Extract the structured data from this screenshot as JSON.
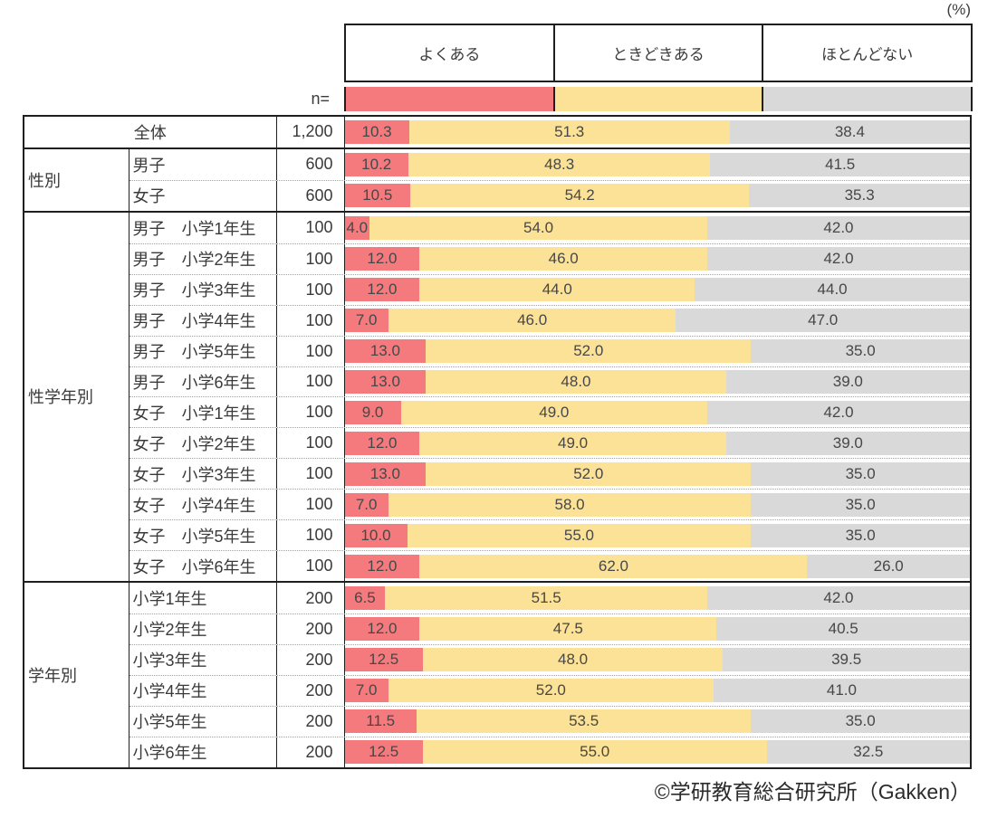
{
  "header": {
    "unit_label": "(%)",
    "n_label": "n="
  },
  "legend": {
    "position": "top",
    "items": [
      {
        "key": "often",
        "label": "よくある",
        "color": "#F47A7D"
      },
      {
        "key": "sometimes",
        "label": "ときどきある",
        "color": "#FCE296"
      },
      {
        "key": "rarely",
        "label": "ほとんどない",
        "color": "#D9D9D9"
      }
    ]
  },
  "footer": {
    "credit": "©学研教育総合研究所（Gakken）"
  },
  "chart_data": {
    "type": "bar",
    "stacked": true,
    "orientation": "horizontal",
    "unit": "%",
    "xlim": [
      0,
      100
    ],
    "grid": false,
    "legend_position": "top",
    "series_labels": [
      "よくある",
      "ときどきある",
      "ほとんどない"
    ],
    "series_colors": [
      "#F47A7D",
      "#FCE296",
      "#D9D9D9"
    ],
    "groups": [
      {
        "group": "",
        "merged": true,
        "rows": [
          {
            "label": "全体",
            "n": "1,200",
            "values": [
              10.3,
              51.3,
              38.4
            ]
          }
        ]
      },
      {
        "group": "性別",
        "merged": false,
        "rows": [
          {
            "label": "男子",
            "n": "600",
            "values": [
              10.2,
              48.3,
              41.5
            ]
          },
          {
            "label": "女子",
            "n": "600",
            "values": [
              10.5,
              54.2,
              35.3
            ]
          }
        ]
      },
      {
        "group": "性学年別",
        "merged": false,
        "rows": [
          {
            "label": "男子　小学1年生",
            "n": "100",
            "values": [
              4.0,
              54.0,
              42.0
            ]
          },
          {
            "label": "男子　小学2年生",
            "n": "100",
            "values": [
              12.0,
              46.0,
              42.0
            ]
          },
          {
            "label": "男子　小学3年生",
            "n": "100",
            "values": [
              12.0,
              44.0,
              44.0
            ]
          },
          {
            "label": "男子　小学4年生",
            "n": "100",
            "values": [
              7.0,
              46.0,
              47.0
            ]
          },
          {
            "label": "男子　小学5年生",
            "n": "100",
            "values": [
              13.0,
              52.0,
              35.0
            ]
          },
          {
            "label": "男子　小学6年生",
            "n": "100",
            "values": [
              13.0,
              48.0,
              39.0
            ]
          },
          {
            "label": "女子　小学1年生",
            "n": "100",
            "values": [
              9.0,
              49.0,
              42.0
            ]
          },
          {
            "label": "女子　小学2年生",
            "n": "100",
            "values": [
              12.0,
              49.0,
              39.0
            ]
          },
          {
            "label": "女子　小学3年生",
            "n": "100",
            "values": [
              13.0,
              52.0,
              35.0
            ]
          },
          {
            "label": "女子　小学4年生",
            "n": "100",
            "values": [
              7.0,
              58.0,
              35.0
            ]
          },
          {
            "label": "女子　小学5年生",
            "n": "100",
            "values": [
              10.0,
              55.0,
              35.0
            ]
          },
          {
            "label": "女子　小学6年生",
            "n": "100",
            "values": [
              12.0,
              62.0,
              26.0
            ]
          }
        ]
      },
      {
        "group": "学年別",
        "merged": false,
        "rows": [
          {
            "label": "小学1年生",
            "n": "200",
            "values": [
              6.5,
              51.5,
              42.0
            ]
          },
          {
            "label": "小学2年生",
            "n": "200",
            "values": [
              12.0,
              47.5,
              40.5
            ]
          },
          {
            "label": "小学3年生",
            "n": "200",
            "values": [
              12.5,
              48.0,
              39.5
            ]
          },
          {
            "label": "小学4年生",
            "n": "200",
            "values": [
              7.0,
              52.0,
              41.0
            ]
          },
          {
            "label": "小学5年生",
            "n": "200",
            "values": [
              11.5,
              53.5,
              35.0
            ]
          },
          {
            "label": "小学6年生",
            "n": "200",
            "values": [
              12.5,
              55.0,
              32.5
            ]
          }
        ]
      }
    ]
  }
}
